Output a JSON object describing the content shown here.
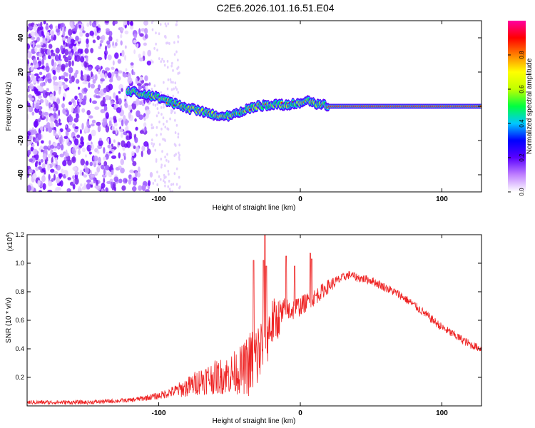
{
  "title": "C2E6.2026.101.16.51.E04",
  "chart_data": [
    {
      "type": "heatmap",
      "title": "C2E6.2026.101.16.51.E04",
      "xlabel": "Height of straight line (km)",
      "ylabel": "Frequency (Hz)",
      "xlim": [
        -193,
        128
      ],
      "ylim": [
        -50,
        50
      ],
      "xticks": [
        -100,
        0,
        100
      ],
      "xtick_labels": [
        "-100",
        "0",
        "100"
      ],
      "yticks": [
        -40,
        -20,
        0,
        20,
        40
      ],
      "ytick_labels": [
        "-40",
        "-20",
        "0",
        "20",
        "40"
      ],
      "grid": false,
      "colorbar": {
        "label": "Normalized spectral amplitude",
        "range": [
          0,
          1
        ],
        "ticks": [
          0,
          0.2,
          0.4,
          0.6,
          0.8
        ],
        "tick_labels": [
          "0.0",
          "0.2",
          "0.4",
          "0.6",
          "0.8"
        ],
        "colors": [
          "#ffffff",
          "#c080ff",
          "#5a00ff",
          "#0000ff",
          "#00c8ff",
          "#00ff40",
          "#c0ff00",
          "#ffff00",
          "#ff8000",
          "#ff0000",
          "#ff00a0"
        ]
      },
      "ridge": {
        "x": [
          -122,
          -110,
          -100,
          -90,
          -80,
          -70,
          -60,
          -50,
          -42,
          -36,
          -30,
          -20,
          -10,
          0,
          5,
          10,
          15,
          20,
          40,
          80,
          128
        ],
        "frequency": [
          9,
          7,
          5,
          2,
          -1,
          -3,
          -5,
          -6,
          -3,
          -1,
          0,
          1,
          1,
          2,
          3,
          2,
          1,
          0,
          0,
          0,
          0
        ]
      },
      "noise_region_end_x": -105
    },
    {
      "type": "line",
      "xlabel": "Height of straight line (km)",
      "ylabel": "SNR (10 * v/v)",
      "y_multiplier": "(x10",
      "y_multiplier_exp": "4",
      "y_multiplier_close": ")",
      "xlim": [
        -193,
        128
      ],
      "ylim": [
        0,
        12000
      ],
      "xticks": [
        -100,
        0,
        100
      ],
      "xtick_labels": [
        "-100",
        "0",
        "100"
      ],
      "yticks": [
        2000,
        4000,
        6000,
        8000,
        10000,
        12000
      ],
      "ytick_labels": [
        "0.2",
        "0.4",
        "0.6",
        "0.8",
        "1.0",
        "1.2"
      ],
      "color": "#ee2222",
      "grid": false,
      "envelope": {
        "x": [
          -193,
          -150,
          -120,
          -100,
          -90,
          -80,
          -70,
          -60,
          -50,
          -40,
          -35,
          -30,
          -25,
          -20,
          -10,
          0,
          10,
          20,
          30,
          35,
          40,
          50,
          60,
          70,
          80,
          90,
          100,
          110,
          120,
          128
        ],
        "base": [
          250,
          250,
          400,
          700,
          1000,
          1300,
          1800,
          2000,
          2200,
          2600,
          3000,
          3500,
          4600,
          5800,
          6600,
          7000,
          7600,
          8400,
          9000,
          9200,
          9000,
          8800,
          8300,
          7800,
          7100,
          6300,
          5500,
          4900,
          4300,
          4000
        ],
        "amp": [
          150,
          150,
          150,
          250,
          400,
          700,
          1000,
          1200,
          1400,
          1800,
          2500,
          2600,
          2400,
          1800,
          1000,
          700,
          600,
          500,
          300,
          300,
          300,
          300,
          300,
          300,
          300,
          300,
          300,
          300,
          300,
          250
        ]
      },
      "spikes": [
        {
          "x": -25,
          "y": 12000
        },
        {
          "x": -26,
          "y": 10200
        },
        {
          "x": -24,
          "y": 9800
        },
        {
          "x": -33,
          "y": 10200
        },
        {
          "x": -10,
          "y": 10500
        },
        {
          "x": 7,
          "y": 10700
        },
        {
          "x": 8,
          "y": 10300
        },
        {
          "x": -4,
          "y": 9800
        }
      ]
    }
  ]
}
